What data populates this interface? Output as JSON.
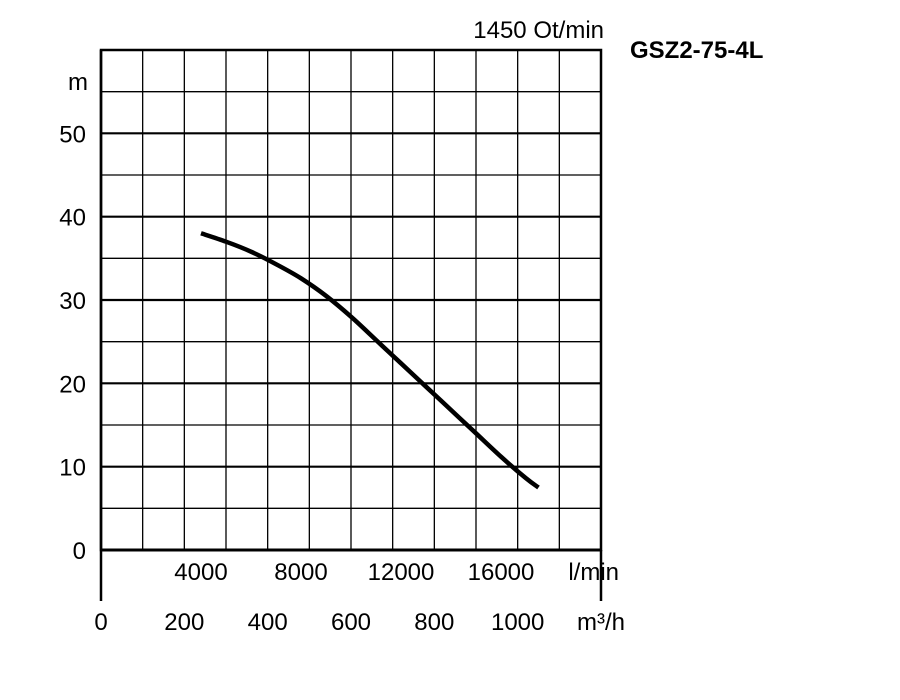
{
  "chart_data": {
    "type": "line",
    "title": "GSZ2-75-4L",
    "subtitle": "1450 Ot/min",
    "ylabel": "m",
    "ylim": [
      0,
      60
    ],
    "yticks": [
      0,
      10,
      20,
      30,
      40,
      50
    ],
    "xlim": [
      0,
      1200
    ],
    "xunit": "m³/h",
    "xticks": [
      0,
      200,
      400,
      600,
      800,
      1000
    ],
    "x2unit": "l/min",
    "x2ticks": [
      4000,
      8000,
      12000,
      16000
    ],
    "grid": true,
    "series": [
      {
        "x": [
          240,
          300,
          360,
          420,
          480,
          540,
          600,
          660,
          720,
          780,
          840,
          900,
          960,
          1020,
          1050
        ],
        "values": [
          38,
          37,
          35.8,
          34.3,
          32.6,
          30.5,
          28,
          25.2,
          22.4,
          19.6,
          16.8,
          14,
          11.2,
          8.6,
          7.5
        ]
      }
    ]
  }
}
